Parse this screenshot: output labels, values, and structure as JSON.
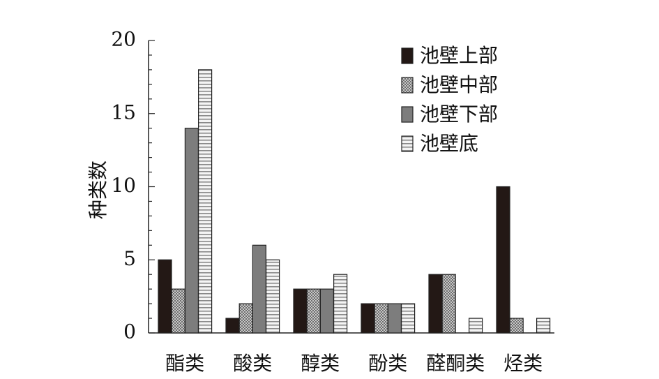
{
  "chart_data": {
    "type": "bar",
    "title": "",
    "xlabel": "",
    "ylabel": "种类数",
    "ylim": [
      0,
      20
    ],
    "yticks": [
      0,
      5,
      10,
      15,
      20
    ],
    "grid": false,
    "legend_position": "top-right",
    "categories": [
      "酯类",
      "酸类",
      "醇类",
      "酚类",
      "醛酮类",
      "烃类"
    ],
    "series": [
      {
        "name": "池壁上部",
        "pattern": "solid-dark",
        "color": "#231815",
        "values": [
          5,
          1,
          3,
          2,
          4,
          10
        ]
      },
      {
        "name": "池壁中部",
        "pattern": "checker",
        "color": "#9a9a9a",
        "values": [
          3,
          2,
          3,
          2,
          4,
          1
        ]
      },
      {
        "name": "池壁下部",
        "pattern": "solid-gray",
        "color": "#7d7d7d",
        "values": [
          14,
          6,
          3,
          2,
          0,
          0
        ]
      },
      {
        "name": "池壁底",
        "pattern": "horizontal-lines",
        "color": "#d9d9d9",
        "values": [
          18,
          5,
          4,
          2,
          1,
          1
        ]
      }
    ]
  }
}
